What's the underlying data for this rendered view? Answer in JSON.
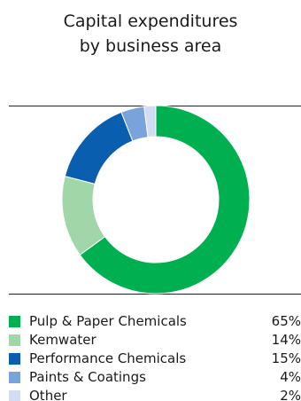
{
  "chart_data": {
    "type": "pie",
    "title": "Capital expenditures by business area",
    "title_lines": [
      "Capital expenditures",
      "by business area"
    ],
    "donut": true,
    "legend_placement": "bottom",
    "slices": [
      {
        "label": "Pulp & Paper Chemicals",
        "value": 65,
        "display": "65%",
        "color": "#00b050"
      },
      {
        "label": "Kemwater",
        "value": 14,
        "display": "14%",
        "color": "#a1d6a9"
      },
      {
        "label": "Performance Chemicals",
        "value": 15,
        "display": "15%",
        "color": "#0a5eb0"
      },
      {
        "label": "Paints & Coatings",
        "value": 4,
        "display": "4%",
        "color": "#7aa3dc"
      },
      {
        "label": "Other",
        "value": 2,
        "display": "2%",
        "color": "#d3dcf3"
      }
    ]
  }
}
